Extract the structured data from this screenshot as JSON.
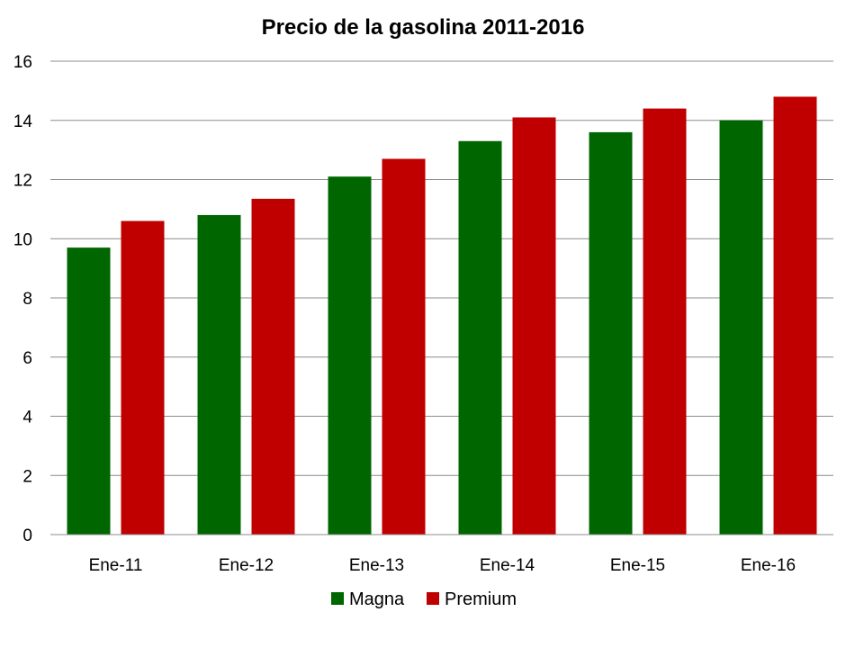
{
  "chart_data": {
    "type": "bar",
    "title": "Precio de la gasolina 2011-2016",
    "xlabel": "",
    "ylabel": "",
    "categories": [
      "Ene-11",
      "Ene-12",
      "Ene-13",
      "Ene-14",
      "Ene-15",
      "Ene-16"
    ],
    "series": [
      {
        "name": "Magna",
        "color": "#006600",
        "values": [
          9.7,
          10.8,
          12.1,
          13.3,
          13.6,
          14.0
        ]
      },
      {
        "name": "Premium",
        "color": "#c00000",
        "values": [
          10.6,
          11.35,
          12.7,
          14.1,
          14.4,
          14.8
        ]
      }
    ],
    "ylim": [
      0,
      16
    ],
    "yticks": [
      0,
      2,
      4,
      6,
      8,
      10,
      12,
      14,
      16
    ],
    "grid": true,
    "legend_position": "bottom"
  }
}
